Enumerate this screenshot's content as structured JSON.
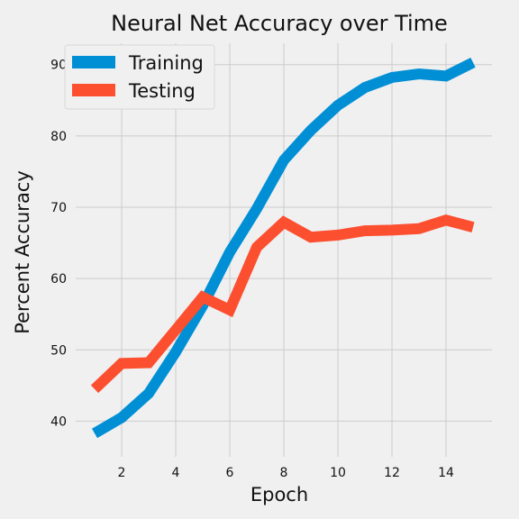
{
  "chart_data": {
    "type": "line",
    "title": "Neural Net Accuracy over Time",
    "xlabel": "Epoch",
    "ylabel": "Percent Accuracy",
    "x": [
      1,
      2,
      3,
      4,
      5,
      6,
      7,
      8,
      9,
      10,
      11,
      12,
      13,
      14,
      15
    ],
    "xlim": [
      0.3,
      15.7
    ],
    "ylim": [
      35,
      93
    ],
    "xticks": [
      2,
      4,
      6,
      8,
      10,
      12,
      14
    ],
    "yticks": [
      40,
      50,
      60,
      70,
      80,
      90
    ],
    "grid": true,
    "legend_position": "top-left",
    "series": [
      {
        "name": "Training",
        "color": "#008fd5",
        "values": [
          38.3,
          40.5,
          43.9,
          49.7,
          56.2,
          63.7,
          69.8,
          76.6,
          80.8,
          84.3,
          86.8,
          88.2,
          88.7,
          88.4,
          90.3
        ]
      },
      {
        "name": "Testing",
        "color": "#fc4f30",
        "values": [
          44.5,
          48.1,
          48.2,
          52.8,
          57.4,
          55.6,
          64.4,
          67.9,
          65.8,
          66.1,
          66.7,
          66.8,
          67.0,
          68.2,
          67.2
        ]
      }
    ]
  }
}
